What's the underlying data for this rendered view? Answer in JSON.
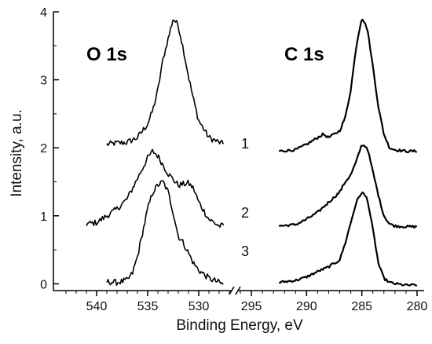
{
  "chart_data": {
    "type": "line",
    "xlabel": "Binding Energy, eV",
    "ylabel": "Intensity, a.u.",
    "ylim": [
      -0.1,
      4.0
    ],
    "y_ticks": [
      "0",
      "1",
      "2",
      "3",
      "4"
    ],
    "x_axis_broken": true,
    "x_reversed": true,
    "panels": [
      {
        "title": "O 1s",
        "xlim": [
          543,
          527
        ],
        "x_ticks": [
          "540",
          "535",
          "530"
        ],
        "series": [
          {
            "name": "1",
            "x": [
              539,
              538,
              537,
              536,
              535,
              534.5,
              534,
              533.5,
              533,
              532.5,
              532,
              531.5,
              531,
              530.5,
              530,
              529,
              528,
              527.5
            ],
            "y": [
              2.05,
              2.07,
              2.08,
              2.15,
              2.35,
              2.55,
              2.85,
              3.3,
              3.6,
              3.9,
              3.8,
              3.45,
              3.05,
              2.7,
              2.4,
              2.15,
              2.08,
              2.05
            ]
          },
          {
            "name": "2",
            "x": [
              541,
              540,
              539,
              538,
              537,
              536,
              535,
              534.5,
              534,
              533,
              532,
              531,
              530.5,
              530,
              529,
              528,
              527.5
            ],
            "y": [
              0.88,
              0.9,
              1.0,
              1.1,
              1.25,
              1.55,
              1.85,
              1.95,
              1.88,
              1.62,
              1.45,
              1.48,
              1.4,
              1.2,
              0.95,
              0.85,
              0.85
            ]
          },
          {
            "name": "3",
            "x": [
              539,
              538,
              537,
              536.5,
              536,
              535.5,
              535,
              534.5,
              534,
              533.5,
              533,
              532.5,
              532,
              531.5,
              531,
              530.5,
              530,
              529,
              528,
              527.5
            ],
            "y": [
              0.03,
              0.02,
              0.05,
              0.15,
              0.4,
              0.75,
              1.1,
              1.35,
              1.45,
              1.5,
              1.35,
              1.05,
              0.7,
              0.6,
              0.45,
              0.3,
              0.2,
              0.08,
              0.02,
              -0.02
            ]
          }
        ]
      },
      {
        "title": "C 1s",
        "xlim": [
          296,
          279.5
        ],
        "x_ticks": [
          "295",
          "290",
          "285",
          "280"
        ],
        "series": [
          {
            "name": "1",
            "x": [
              292.5,
              291,
              290,
              289,
              288.5,
              288,
              287,
              286.5,
              286,
              285.5,
              285,
              284.5,
              284,
              283.5,
              283,
              282.5,
              282,
              281,
              280
            ],
            "y": [
              1.95,
              1.97,
              2.05,
              2.15,
              2.2,
              2.15,
              2.25,
              2.45,
              2.85,
              3.5,
              3.92,
              3.75,
              3.2,
              2.6,
              2.2,
              2.0,
              1.97,
              1.95,
              1.95
            ]
          },
          {
            "name": "2",
            "x": [
              292.5,
              291,
              290,
              289,
              288,
              287,
              286.5,
              286,
              285.5,
              285,
              284.5,
              284,
              283.5,
              283,
              282.5,
              282,
              281,
              280
            ],
            "y": [
              0.85,
              0.87,
              0.95,
              1.05,
              1.2,
              1.35,
              1.5,
              1.6,
              1.8,
              2.05,
              2.0,
              1.65,
              1.3,
              1.0,
              0.88,
              0.85,
              0.84,
              0.84
            ]
          },
          {
            "name": "3",
            "x": [
              292.5,
              291,
              290,
              289,
              288,
              287,
              286.5,
              286,
              285.5,
              285,
              284.5,
              284,
              283.5,
              283,
              282.5,
              282,
              281,
              280
            ],
            "y": [
              0.02,
              0.05,
              0.1,
              0.18,
              0.25,
              0.35,
              0.6,
              0.9,
              1.2,
              1.35,
              1.25,
              0.8,
              0.3,
              0.08,
              0.02,
              0.0,
              -0.02,
              -0.02
            ]
          }
        ]
      }
    ],
    "curve_labels": [
      "1",
      "2",
      "3"
    ]
  }
}
